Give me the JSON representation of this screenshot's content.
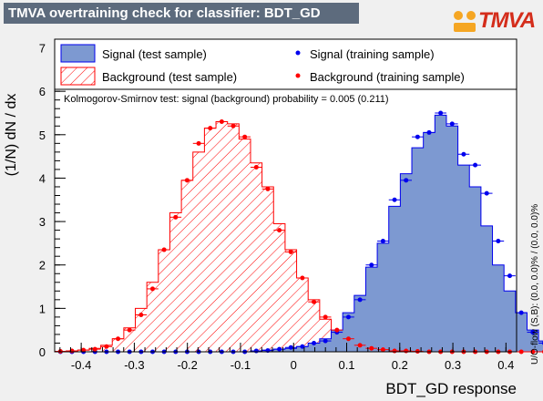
{
  "title": "TMVA overtraining check for classifier: BDT_GD",
  "logo_text": "TMVA",
  "side_note": "U/O-flow (S,B): (0.0, 0.0)% / (0.0, 0.0)%",
  "ks_text": "Kolmogorov-Smirnov test: signal (background) probability = 0.005 (0.211)",
  "colors": {
    "signal_fill": "#7d99d1",
    "signal_line": "#0000ee",
    "background_line": "#ff0000",
    "title_bg": "#5d6b7d"
  },
  "chart_data": {
    "type": "histogram",
    "xlabel": "BDT_GD response",
    "ylabel": "(1/N) dN / dx",
    "xlim": [
      -0.45,
      0.42
    ],
    "ylim": [
      0,
      7.2
    ],
    "xticks": [
      -0.4,
      -0.3,
      -0.2,
      -0.1,
      0,
      0.1,
      0.2,
      0.3,
      0.4
    ],
    "xtick_labels": [
      "-0.4",
      "-0.3",
      "-0.2",
      "-0.1",
      "0",
      "0.1",
      "0.2",
      "0.3",
      "0.4"
    ],
    "yticks": [
      0,
      1,
      2,
      3,
      4,
      5,
      6,
      7
    ],
    "ytick_labels": [
      "0",
      "1",
      "2",
      "3",
      "4",
      "5",
      "6",
      "7"
    ],
    "legend": [
      {
        "label": "Signal (test sample)",
        "style": "filled-box"
      },
      {
        "label": "Background (test sample)",
        "style": "hatched-box"
      },
      {
        "label": "Signal (training sample)",
        "style": "marker-blue"
      },
      {
        "label": "Background (training sample)",
        "style": "marker-red"
      }
    ],
    "bin_edges_start": -0.45,
    "bin_width": 0.0217,
    "series": [
      {
        "name": "Signal (test sample)",
        "kind": "filled-step",
        "values": [
          0,
          0,
          0,
          0,
          0,
          0,
          0,
          0,
          0,
          0,
          0,
          0,
          0,
          0,
          0,
          0,
          0,
          0.02,
          0.04,
          0.06,
          0.08,
          0.12,
          0.2,
          0.3,
          0.5,
          0.9,
          1.3,
          1.95,
          2.5,
          3.35,
          4.1,
          4.7,
          5.05,
          5.45,
          5.2,
          4.3,
          3.8,
          2.9,
          2.0,
          1.4,
          0.9,
          0.5,
          0.25,
          0.12,
          0.05,
          0.03,
          0.02,
          0,
          0,
          0
        ]
      },
      {
        "name": "Background (test sample)",
        "kind": "hatched-step",
        "values": [
          0.01,
          0.02,
          0.04,
          0.08,
          0.15,
          0.3,
          0.55,
          1.0,
          1.6,
          2.35,
          3.2,
          3.95,
          4.6,
          5.15,
          5.3,
          5.25,
          4.9,
          4.35,
          3.8,
          2.95,
          2.35,
          1.7,
          1.2,
          0.75,
          0.45,
          0.3,
          0.18,
          0.1,
          0.05,
          0.03,
          0.02,
          0.01,
          0,
          0,
          0,
          0,
          0,
          0,
          0,
          0,
          0,
          0,
          0,
          0,
          0,
          0,
          0,
          0,
          0,
          0
        ]
      },
      {
        "name": "Signal (training sample)",
        "kind": "markers",
        "values": [
          0,
          0,
          0,
          0,
          0,
          0,
          0,
          0,
          0,
          0,
          0,
          0,
          0,
          0,
          0,
          0,
          0,
          0.02,
          0.03,
          0.06,
          0.1,
          0.12,
          0.2,
          0.25,
          0.45,
          0.8,
          1.2,
          2.0,
          2.55,
          3.5,
          3.95,
          4.95,
          5.05,
          5.5,
          5.25,
          4.55,
          4.3,
          3.65,
          2.55,
          1.75,
          0.9,
          0.45,
          0.2,
          0.1,
          0.05,
          0.02,
          0.02,
          0,
          0,
          0
        ]
      },
      {
        "name": "Background (training sample)",
        "kind": "markers",
        "values": [
          0.01,
          0.02,
          0.04,
          0.06,
          0.12,
          0.3,
          0.5,
          0.85,
          1.45,
          2.35,
          3.1,
          3.95,
          4.8,
          5.15,
          5.3,
          5.2,
          4.95,
          4.25,
          3.75,
          2.8,
          2.3,
          1.7,
          1.15,
          0.8,
          0.5,
          0.3,
          0.15,
          0.08,
          0.05,
          0.02,
          0.02,
          0.01,
          0,
          0,
          0,
          0,
          0,
          0,
          0,
          0,
          0,
          0,
          0,
          0,
          0,
          0,
          0,
          0,
          0,
          0
        ]
      }
    ]
  }
}
